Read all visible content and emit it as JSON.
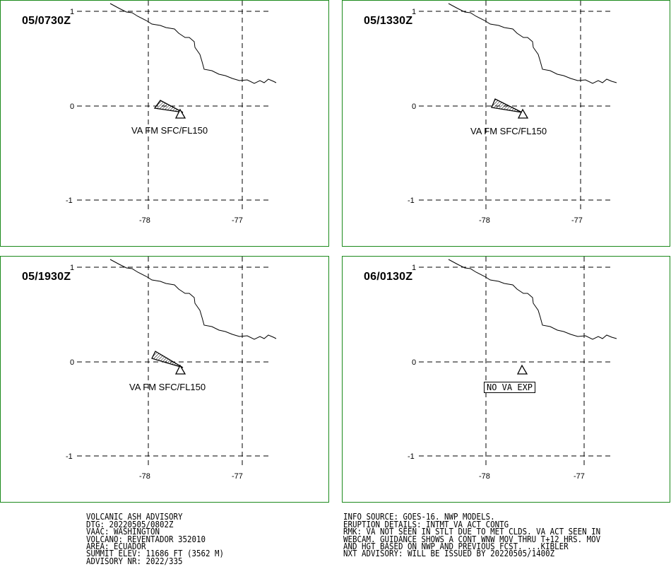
{
  "panels": [
    {
      "dtg": "05/0730Z",
      "label": "VA FM SFC/FL150",
      "boxed": false
    },
    {
      "dtg": "05/1330Z",
      "label": "VA FM SFC/FL150",
      "boxed": false
    },
    {
      "dtg": "05/1930Z",
      "label": "VA FM SFC/FL150",
      "boxed": false
    },
    {
      "dtg": "06/0130Z",
      "label": "NO VA EXP",
      "boxed": true
    }
  ],
  "axes": {
    "lat_ticks": [
      "1",
      "0",
      "-1"
    ],
    "lon_ticks": [
      "-78",
      "-77"
    ]
  },
  "advisory_left": [
    "VOLCANIC ASH ADVISORY",
    "DTG: 20220505/0802Z",
    "VAAC: WASHINGTON",
    "VOLCANO: REVENTADOR 352010",
    "AREA: ECUADOR",
    "SUMMIT ELEV: 11686 FT (3562 M)",
    "ADVISORY NR: 2022/335"
  ],
  "advisory_right": [
    "INFO SOURCE: GOES-16. NWP MODELS.",
    "ERUPTION DETAILS: INTMT VA ACT CONTG",
    "RMK: VA NOT SEEN IN STLT DUE TO MET CLDS. VA ACT SEEN IN",
    "WEBCAM. GUIDANCE SHOWS A CONT WNW MOV THRU T+12 HRS. MOV",
    "AND HGT BASED ON NWP AND PREVIOUS FCST. ...KIBLER",
    "NXT ADVISORY: WILL BE ISSUED BY 20220505/1400Z"
  ],
  "colors": {
    "panel_border": "#1c8a1c"
  },
  "icons": {
    "volcano": "volcano-triangle-icon",
    "ash_plume": "hatched-plume-polygon"
  }
}
